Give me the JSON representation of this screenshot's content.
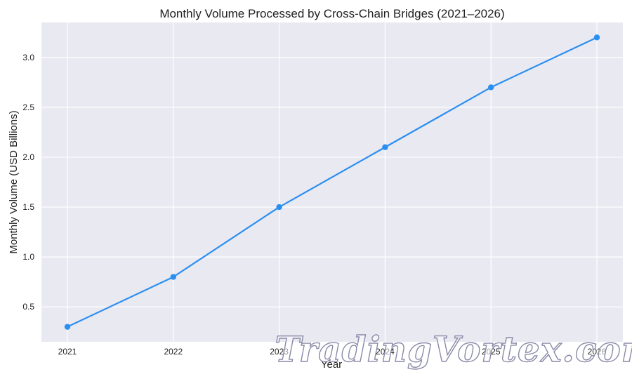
{
  "chart_data": {
    "type": "line",
    "title": "Monthly Volume Processed by Cross-Chain Bridges (2021–2026)",
    "xlabel": "Year",
    "ylabel": "Monthly Volume (USD Billions)",
    "x": [
      "2021",
      "2022",
      "2023",
      "2024",
      "2025",
      "2026"
    ],
    "series": [
      {
        "values": [
          0.3,
          0.8,
          1.5,
          2.1,
          2.7,
          3.2
        ]
      }
    ],
    "ylim": [
      0.15,
      3.35
    ],
    "yticks": [
      "0.5",
      "1.0",
      "1.5",
      "2.0",
      "2.5",
      "3.0"
    ],
    "grid": true,
    "colors": {
      "line": "#2b8ff0",
      "plot_background": "#e9e9f2",
      "grid": "#ffffff"
    }
  },
  "watermark": {
    "text": "TradingVortex.com"
  }
}
